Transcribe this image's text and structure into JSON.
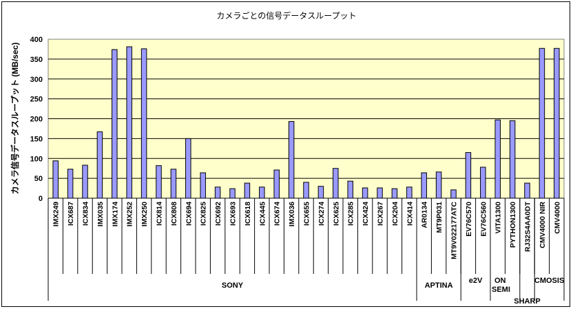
{
  "chart_data": {
    "type": "bar",
    "title": "カメラごとの信号データスループット",
    "xlabel": "",
    "ylabel": "カメラ信号データスループット (MB/sec)",
    "ylim": [
      0,
      400
    ],
    "yticks": [
      0,
      50,
      100,
      150,
      200,
      250,
      300,
      350,
      400
    ],
    "grid": true,
    "bar_color": "#9999ff",
    "plot_background": "#ffffcc",
    "categories": [
      "IMX249",
      "ICX687",
      "ICX834",
      "IMX035",
      "IMX174",
      "IMX252",
      "IMX250",
      "ICX814",
      "ICX808",
      "ICX694",
      "ICX825",
      "ICX692",
      "ICX693",
      "ICX618",
      "ICX445",
      "ICX674",
      "IMX036",
      "ICX655",
      "ICX274",
      "ICX625",
      "ICX285",
      "ICX424",
      "ICX267",
      "ICX204",
      "ICX414",
      "AR0134",
      "MT9P031",
      "MT9V022177ATC",
      "EV76C570",
      "EV76C560",
      "VITA1300",
      "PYTHON1300",
      "RJ32S4AA0DT",
      "CMV4000 NIR",
      "CMV4000"
    ],
    "values": [
      94,
      73,
      83,
      167,
      374,
      381,
      376,
      82,
      73,
      150,
      64,
      28,
      24,
      38,
      28,
      71,
      193,
      40,
      30,
      75,
      43,
      26,
      26,
      24,
      28,
      64,
      66,
      21,
      115,
      78,
      197,
      195,
      38,
      377,
      377
    ],
    "groups": [
      {
        "name": "SONY",
        "count": 25
      },
      {
        "name": "APTINA",
        "count": 3
      },
      {
        "name": "e2V",
        "count": 2
      },
      {
        "name": "ON SEMI",
        "count": 2
      },
      {
        "name": "SHARP",
        "count": 1
      },
      {
        "name": "CMOSIS",
        "count": 2
      }
    ]
  }
}
